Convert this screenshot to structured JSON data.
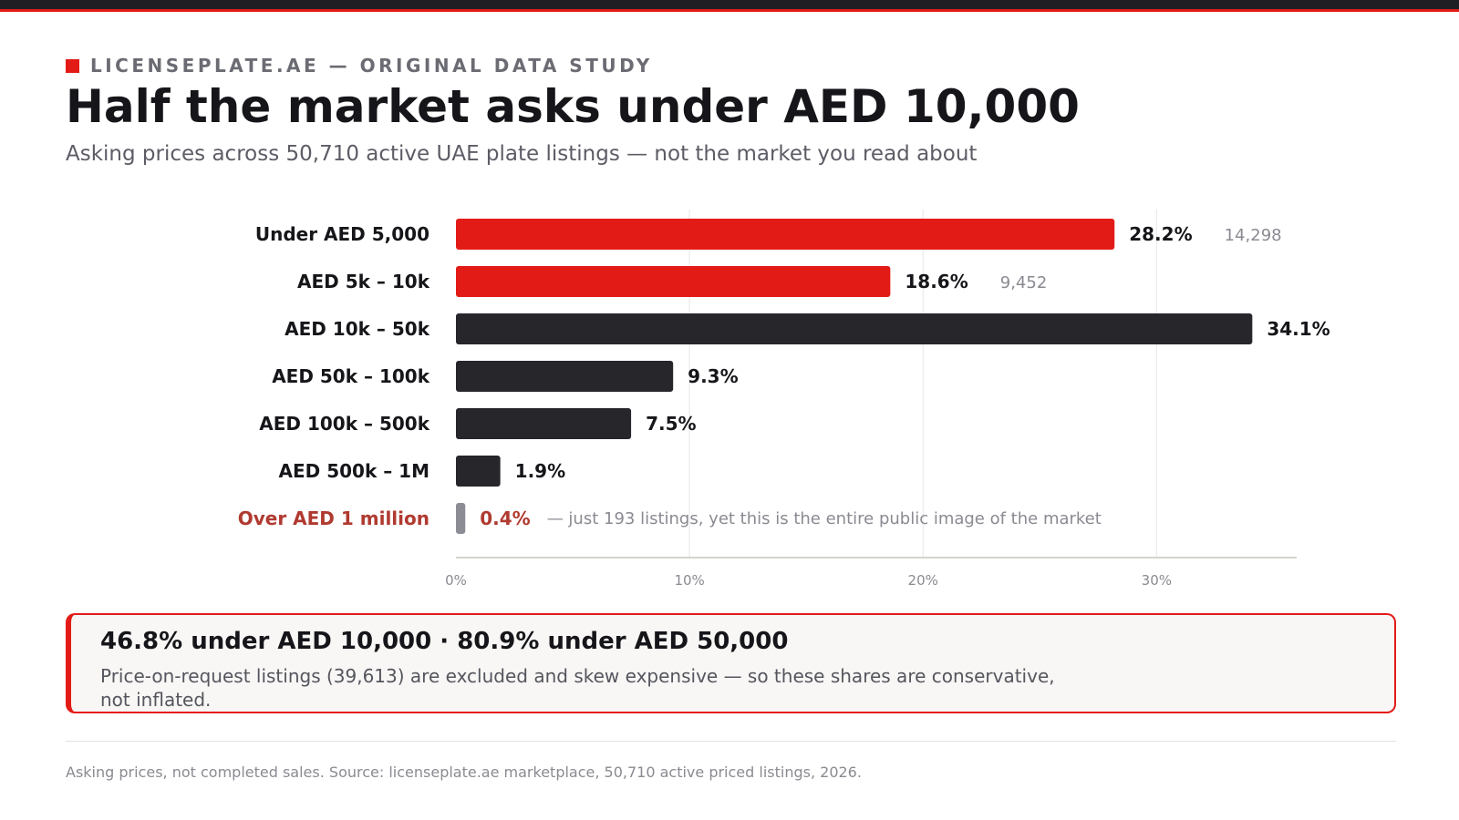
{
  "kicker": "LICENSEPLATE.AE — ORIGINAL DATA STUDY",
  "title": "Half the market asks under AED 10,000",
  "subtitle": "Asking prices across 50,710 active UAE plate listings — not the market you read about",
  "colors": {
    "accent": "#e31b17",
    "dark_bar": "#26262b",
    "muted_bar": "#8c8c94",
    "highlight_text": "#b03a30"
  },
  "chart_data": {
    "type": "bar",
    "orientation": "horizontal",
    "categories": [
      "Under AED 5,000",
      "AED 5k – 10k",
      "AED 10k – 50k",
      "AED 50k – 100k",
      "AED 100k – 500k",
      "AED 500k – 1M",
      "Over AED 1 million"
    ],
    "values": [
      28.2,
      18.6,
      34.1,
      9.3,
      7.5,
      1.9,
      0.4
    ],
    "value_labels": [
      "28.2%",
      "18.6%",
      "34.1%",
      "9.3%",
      "7.5%",
      "1.9%",
      "0.4%"
    ],
    "counts": [
      "14,298",
      "9,452",
      "",
      "",
      "",
      "",
      ""
    ],
    "bar_colors": [
      "#e31b17",
      "#e31b17",
      "#26262b",
      "#26262b",
      "#26262b",
      "#26262b",
      "#8c8c94"
    ],
    "highlight_category": "Over AED 1 million",
    "annotation": "— just 193 listings, yet this is the entire public image of the market",
    "xlim": [
      0,
      36
    ],
    "xticks": [
      0,
      10,
      20,
      30
    ],
    "xtick_labels": [
      "0%",
      "10%",
      "20%",
      "30%"
    ],
    "grid": "vertical",
    "xlabel": "",
    "ylabel": ""
  },
  "callout": {
    "headline": "46.8% under AED 10,000 · 80.9% under AED 50,000",
    "body": "Price-on-request listings (39,613) are excluded and skew expensive — so these shares are conservative, not inflated."
  },
  "footnote": "Asking prices, not completed sales. Source: licenseplate.ae marketplace, 50,710 active priced listings, 2026."
}
